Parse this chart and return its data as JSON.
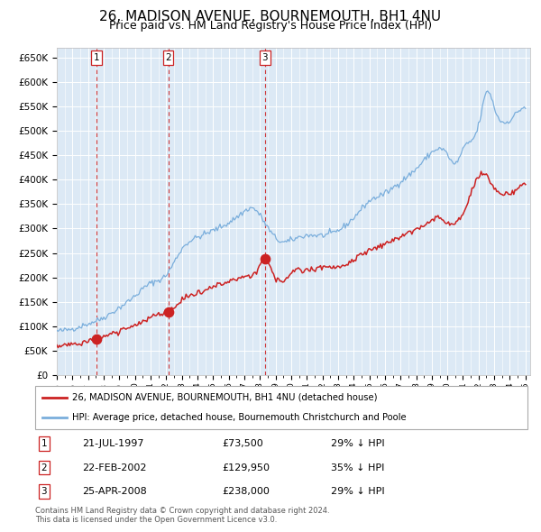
{
  "title": "26, MADISON AVENUE, BOURNEMOUTH, BH1 4NU",
  "subtitle": "Price paid vs. HM Land Registry's House Price Index (HPI)",
  "title_fontsize": 11,
  "subtitle_fontsize": 9,
  "bg_color": "#dce9f5",
  "grid_color": "#ffffff",
  "ylim": [
    0,
    670000
  ],
  "yticks": [
    0,
    50000,
    100000,
    150000,
    200000,
    250000,
    300000,
    350000,
    400000,
    450000,
    500000,
    550000,
    600000,
    650000
  ],
  "ytick_labels": [
    "£0",
    "£50K",
    "£100K",
    "£150K",
    "£200K",
    "£250K",
    "£300K",
    "£350K",
    "£400K",
    "£450K",
    "£500K",
    "£550K",
    "£600K",
    "£650K"
  ],
  "sale_dates_float": [
    1997.55,
    2002.13,
    2008.32
  ],
  "sale_prices": [
    73500,
    129950,
    238000
  ],
  "sale_labels": [
    "1",
    "2",
    "3"
  ],
  "hpi_line_color": "#7aaedc",
  "price_line_color": "#cc2222",
  "vline_color": "#cc2222",
  "marker_color": "#cc2222",
  "legend_line1": "26, MADISON AVENUE, BOURNEMOUTH, BH1 4NU (detached house)",
  "legend_line2": "HPI: Average price, detached house, Bournemouth Christchurch and Poole",
  "table_entries": [
    {
      "num": "1",
      "date": "21-JUL-1997",
      "price": "£73,500",
      "hpi": "29% ↓ HPI"
    },
    {
      "num": "2",
      "date": "22-FEB-2002",
      "price": "£129,950",
      "hpi": "35% ↓ HPI"
    },
    {
      "num": "3",
      "date": "25-APR-2008",
      "price": "£238,000",
      "hpi": "29% ↓ HPI"
    }
  ],
  "footnote1": "Contains HM Land Registry data © Crown copyright and database right 2024.",
  "footnote2": "This data is licensed under the Open Government Licence v3.0.",
  "hpi_anchors_x": [
    1995.0,
    1996.0,
    1997.0,
    1998.0,
    1999.0,
    2000.0,
    2001.0,
    2002.0,
    2003.0,
    2004.0,
    2005.0,
    2006.0,
    2007.0,
    2007.5,
    2008.5,
    2009.5,
    2010.0,
    2011.0,
    2012.0,
    2013.0,
    2014.0,
    2015.0,
    2016.0,
    2017.0,
    2018.0,
    2019.0,
    2020.0,
    2020.5,
    2021.0,
    2022.0,
    2022.6,
    2023.0,
    2024.0,
    2024.9
  ],
  "hpi_anchors_y": [
    90000,
    95000,
    105000,
    118000,
    138000,
    162000,
    188000,
    205000,
    258000,
    282000,
    296000,
    312000,
    335000,
    342000,
    302000,
    272000,
    276000,
    286000,
    286000,
    296000,
    322000,
    356000,
    372000,
    396000,
    422000,
    456000,
    452000,
    432000,
    462000,
    512000,
    582000,
    548000,
    522000,
    548000
  ],
  "price_anchors_x": [
    1995.0,
    1996.5,
    1997.55,
    1998.5,
    1999.5,
    2000.5,
    2001.5,
    2002.13,
    2003.0,
    2004.0,
    2005.0,
    2006.0,
    2007.0,
    2007.8,
    2008.32,
    2009.0,
    2010.0,
    2011.0,
    2012.0,
    2013.0,
    2014.0,
    2015.0,
    2016.0,
    2017.0,
    2018.0,
    2019.0,
    2019.5,
    2020.0,
    2021.0,
    2022.3,
    2023.0,
    2024.0,
    2024.9
  ],
  "price_anchors_y": [
    60000,
    65000,
    73500,
    83000,
    95000,
    110000,
    124000,
    129950,
    152000,
    168000,
    181000,
    191000,
    202000,
    215000,
    238000,
    198000,
    208000,
    216000,
    219000,
    223000,
    236000,
    256000,
    268000,
    283000,
    298000,
    316000,
    322000,
    310000,
    332000,
    413000,
    382000,
    372000,
    390000
  ]
}
